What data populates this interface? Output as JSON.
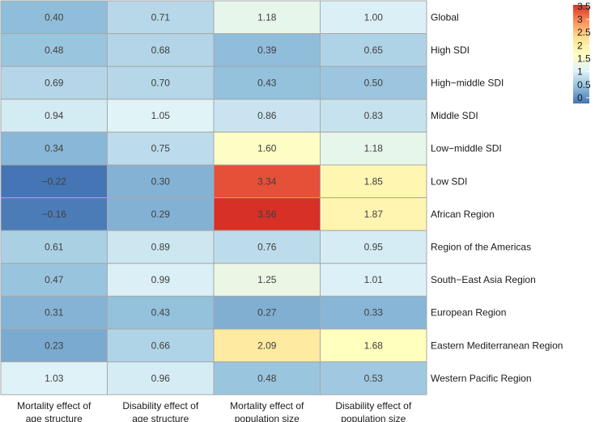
{
  "chart_data": {
    "type": "heatmap",
    "columns": [
      [
        "Mortality effect of",
        "age structure"
      ],
      [
        "Disability effect of",
        "age structure"
      ],
      [
        "Mortality effect of",
        "population size"
      ],
      [
        "Disability effect of",
        "population size"
      ]
    ],
    "rows": [
      "Global",
      "High SDI",
      "High−middle SDI",
      "Middle SDI",
      "Low−middle SDI",
      "Low SDI",
      "African Region",
      "Region of the Americas",
      "South−East Asia Region",
      "European Region",
      "Eastern Mediterranean Region",
      "Western Pacific Region"
    ],
    "values": [
      [
        0.4,
        0.71,
        1.18,
        1.0
      ],
      [
        0.48,
        0.68,
        0.39,
        0.65
      ],
      [
        0.69,
        0.7,
        0.43,
        0.5
      ],
      [
        0.94,
        1.05,
        0.86,
        0.83
      ],
      [
        0.34,
        0.75,
        1.6,
        1.18
      ],
      [
        -0.22,
        0.3,
        3.34,
        1.85
      ],
      [
        -0.16,
        0.29,
        3.56,
        1.87
      ],
      [
        0.61,
        0.89,
        0.76,
        0.95
      ],
      [
        0.47,
        0.99,
        1.25,
        1.01
      ],
      [
        0.31,
        0.43,
        0.27,
        0.33
      ],
      [
        0.23,
        0.66,
        2.09,
        1.68
      ],
      [
        1.03,
        0.96,
        0.48,
        0.53
      ]
    ],
    "labels": [
      [
        "0.40",
        "0.71",
        "1.18",
        "1.00"
      ],
      [
        "0.48",
        "0.68",
        "0.39",
        "0.65"
      ],
      [
        "0.69",
        "0.70",
        "0.43",
        "0.50"
      ],
      [
        "0.94",
        "1.05",
        "0.86",
        "0.83"
      ],
      [
        "0.34",
        "0.75",
        "1.60",
        "1.18"
      ],
      [
        "−0.22",
        "0.30",
        "3.34",
        "1.85"
      ],
      [
        "−0.16",
        "0.29",
        "3.56",
        "1.87"
      ],
      [
        "0.61",
        "0.89",
        "0.76",
        "0.95"
      ],
      [
        "0.47",
        "0.99",
        "1.25",
        "1.01"
      ],
      [
        "0.31",
        "0.43",
        "0.27",
        "0.33"
      ],
      [
        "0.23",
        "0.66",
        "2.09",
        "1.68"
      ],
      [
        "1.03",
        "0.96",
        "0.48",
        "0.53"
      ]
    ],
    "colorbar": {
      "min": -0.22,
      "max": 3.56,
      "ticks": [
        3.5,
        3,
        2.5,
        2,
        1.5,
        1,
        0.5,
        0
      ],
      "tick_labels": [
        "3.5",
        "3",
        "2.5",
        "2",
        "1.5",
        "1",
        "0.5",
        "0"
      ],
      "colors": [
        "#4575b4",
        "#91bfdb",
        "#e0f3f8",
        "#ffffbf",
        "#fee090",
        "#fc8d59",
        "#d73027"
      ]
    },
    "title": "",
    "legend": "top-right"
  }
}
